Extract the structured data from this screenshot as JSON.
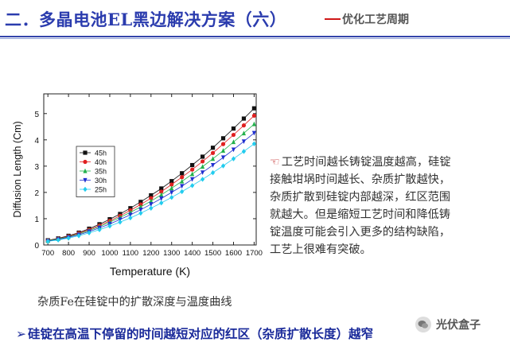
{
  "header": {
    "title": "二．多晶电池EL黑边解决方案（六）",
    "subtitle": "优化工艺周期",
    "accent_color": "#2b3cae",
    "dash_color": "#d01818"
  },
  "explanation": {
    "bullet_icon": "hand-pointer-icon",
    "lines": [
      "工艺时间越长铸锭温度越高，硅锭",
      "接触坩埚时间越长、杂质扩散越快，",
      "杂质扩散到硅锭内部越深，红区范围",
      "就越大。但是缩短工艺时间和降低铸",
      "锭温度可能会引入更多的结构缺陷，",
      "工艺上很难有突破。"
    ]
  },
  "caption": "杂质Fe在硅锭中的扩散深度与温度曲线",
  "bottom_note": "硅锭在高温下停留的时间越短对应的红区（杂质扩散长度）越窄",
  "watermark": {
    "icon": "wechat-icon",
    "text": "光伏盒子"
  },
  "chart_data": {
    "type": "scatter",
    "xlabel": "Temperature (K)",
    "ylabel": "Diffusion Length (Cm)",
    "xlim": [
      680,
      1710
    ],
    "ylim": [
      0,
      5.75
    ],
    "xticks": [
      700,
      800,
      900,
      1000,
      1100,
      1200,
      1300,
      1400,
      1500,
      1600,
      1700
    ],
    "yticks": [
      0,
      1,
      2,
      3,
      4,
      5
    ],
    "grid": false,
    "legend_position": "top-left",
    "x": [
      700,
      750,
      800,
      850,
      900,
      950,
      1000,
      1050,
      1100,
      1150,
      1200,
      1250,
      1300,
      1350,
      1400,
      1450,
      1500,
      1550,
      1600,
      1650,
      1700
    ],
    "series": [
      {
        "name": "45h",
        "color": "#111111",
        "marker": "square",
        "values": [
          0.18,
          0.25,
          0.35,
          0.47,
          0.62,
          0.79,
          0.98,
          1.18,
          1.4,
          1.64,
          1.89,
          2.15,
          2.43,
          2.73,
          3.04,
          3.36,
          3.7,
          4.06,
          4.43,
          4.81,
          5.2
        ]
      },
      {
        "name": "40h",
        "color": "#e02020",
        "marker": "circle",
        "values": [
          0.17,
          0.24,
          0.33,
          0.45,
          0.58,
          0.74,
          0.92,
          1.11,
          1.32,
          1.54,
          1.78,
          2.03,
          2.3,
          2.58,
          2.87,
          3.18,
          3.5,
          3.84,
          4.19,
          4.55,
          4.92
        ]
      },
      {
        "name": "35h",
        "color": "#22b14c",
        "marker": "triangle-up",
        "values": [
          0.16,
          0.23,
          0.31,
          0.42,
          0.55,
          0.7,
          0.87,
          1.05,
          1.24,
          1.45,
          1.67,
          1.91,
          2.16,
          2.42,
          2.7,
          2.98,
          3.28,
          3.59,
          3.92,
          4.25,
          4.6
        ]
      },
      {
        "name": "30h",
        "color": "#2030d0",
        "marker": "triangle-down",
        "values": [
          0.15,
          0.21,
          0.29,
          0.39,
          0.51,
          0.65,
          0.8,
          0.97,
          1.15,
          1.34,
          1.55,
          1.77,
          2.0,
          2.24,
          2.5,
          2.76,
          3.04,
          3.33,
          3.63,
          3.94,
          4.26
        ]
      },
      {
        "name": "25h",
        "color": "#22ccee",
        "marker": "diamond",
        "values": [
          0.14,
          0.19,
          0.26,
          0.35,
          0.46,
          0.58,
          0.72,
          0.87,
          1.03,
          1.21,
          1.4,
          1.6,
          1.81,
          2.03,
          2.26,
          2.5,
          2.75,
          3.01,
          3.28,
          3.56,
          3.85
        ]
      }
    ]
  }
}
